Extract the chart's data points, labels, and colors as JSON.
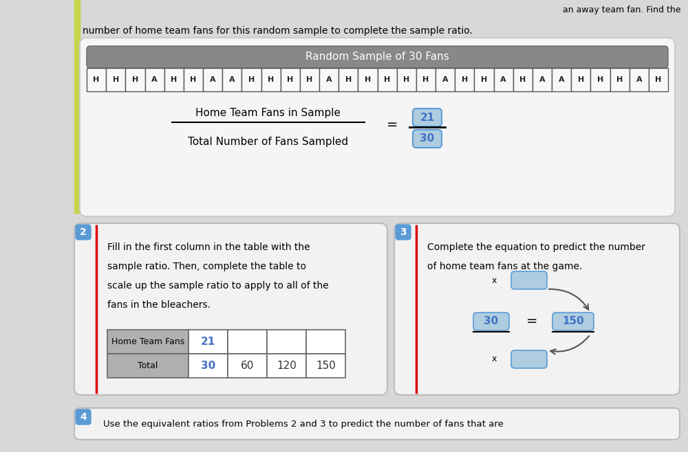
{
  "bg_color": "#d8d8d8",
  "top_text1": "number of home team fans for this random sample to complete the sample ratio.",
  "top_right_text": "an away team fan. Find the",
  "random_sample_title": "Random Sample of 30 Fans",
  "random_sample_header_color": "#888888",
  "letters": [
    "H",
    "H",
    "H",
    "A",
    "H",
    "H",
    "A",
    "A",
    "H",
    "H",
    "H",
    "H",
    "A",
    "H",
    "H",
    "H",
    "H",
    "H",
    "A",
    "H",
    "H",
    "A",
    "H",
    "A",
    "A",
    "H",
    "H",
    "H",
    "A",
    "H"
  ],
  "fraction_top": "Home Team Fans in Sample",
  "fraction_bottom": "Total Number of Fans Sampled",
  "numerator": "21",
  "denominator": "30",
  "box2_title": "2",
  "box2_text": [
    "Fill in the first column in the table with the",
    "sample ratio. Then, complete the table to",
    "scale up the sample ratio to apply to all of the",
    "fans in the bleachers."
  ],
  "table_row1_label": "Home Team Fans",
  "table_row1_vals": [
    "21",
    "",
    "",
    ""
  ],
  "table_row2_label": "Total",
  "table_row2_vals": [
    "30",
    "60",
    "120",
    "150"
  ],
  "box3_title": "3",
  "box3_text": [
    "Complete the equation to predict the number",
    "of home team fans at the game."
  ],
  "box4_title": "4",
  "box4_text": "Use the equivalent ratios from Problems 2 and 3 to predict the number of fans that are",
  "red_line_color": "#dd0000",
  "blue_badge_color": "#5b9bd5",
  "light_blue_fill": "#aecde0",
  "num_color": "#4472c4",
  "label_bg": "#aaaaaa",
  "white": "#ffffff",
  "outer_box_bg": "#f2f2f2",
  "outer_box_ec": "#bbbbbb"
}
